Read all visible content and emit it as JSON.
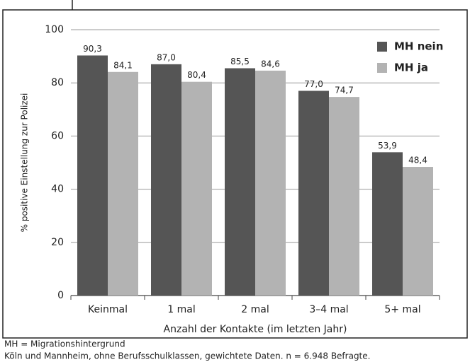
{
  "chart_data": {
    "type": "bar",
    "categories": [
      "Keinmal",
      "1 mal",
      "2 mal",
      "3–4 mal",
      "5+ mal"
    ],
    "series": [
      {
        "name": "MH nein",
        "color": "#555555",
        "values": [
          90.3,
          87.0,
          85.5,
          77.0,
          53.9
        ],
        "value_labels": [
          "90,3",
          "87,0",
          "85,5",
          "77,0",
          "53,9"
        ]
      },
      {
        "name": "MH ja",
        "color": "#b3b3b3",
        "values": [
          84.1,
          80.4,
          84.6,
          74.7,
          48.4
        ],
        "value_labels": [
          "84,1",
          "80,4",
          "84,6",
          "74,7",
          "48,4"
        ]
      }
    ],
    "ylabel": "% positive Einstellung zur Polizei",
    "xlabel": "Anzahl der Kontakte (im letzten Jahr)",
    "ylim": [
      0,
      100
    ],
    "yticks": [
      0,
      20,
      40,
      60,
      80,
      100
    ],
    "grid": true,
    "legend": "upper right",
    "notes": [
      "MH = Migrationshintergrund",
      "Köln und Mannheim, ohne Berufsschulklassen, gewichtete Daten. n = 6.948 Befragte."
    ]
  }
}
